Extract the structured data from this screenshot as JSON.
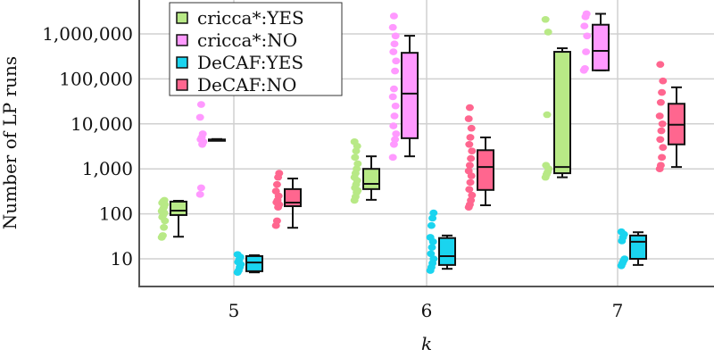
{
  "chart_data": {
    "type": "box",
    "title": "",
    "xlabel": "k",
    "ylabel": "Number of LP runs",
    "yscale": "log",
    "ylim": [
      2.4,
      5600000
    ],
    "yticks": [
      10,
      100,
      1000,
      10000,
      100000,
      1000000
    ],
    "ytick_labels": [
      "10",
      "100",
      "1,000",
      "10,000",
      "100,000",
      "1,000,000"
    ],
    "categories": [
      "5",
      "6",
      "7"
    ],
    "grid": true,
    "legend_position": "top-left",
    "series": [
      {
        "name": "cricca*:YES",
        "color": "#b8e986",
        "boxes": [
          {
            "min": 31,
            "q1": 94,
            "median": 118,
            "q3": 187,
            "max": 195,
            "points": [
              30,
              33,
              50,
              70,
              85,
              95,
              105,
              115,
              125,
              140,
              160,
              175,
              190,
              200
            ]
          },
          {
            "min": 205,
            "q1": 355,
            "median": 465,
            "q3": 1000,
            "max": 1900,
            "points": [
              200,
              240,
              300,
              330,
              380,
              450,
              550,
              650,
              800,
              1000,
              1300,
              1800,
              2500,
              3200,
              4000
            ]
          },
          {
            "min": 650,
            "q1": 800,
            "median": 1100,
            "q3": 400000,
            "max": 480000,
            "points": [
              650,
              750,
              850,
              1000,
              1200,
              16000,
              1100000,
              2100000
            ]
          }
        ]
      },
      {
        "name": "cricca*:NO",
        "color": "#ff99ff",
        "boxes": [
          {
            "min": 4300,
            "q1": 4350,
            "median": 4400,
            "q3": 4500,
            "max": 4600,
            "points": [
              270,
              380,
              3500,
              4000,
              4500,
              5000,
              6000,
              14000,
              27000
            ]
          },
          {
            "min": 1900,
            "q1": 4800,
            "median": 47000,
            "q3": 380000,
            "max": 910000,
            "points": [
              1800,
              3500,
              4500,
              6000,
              9000,
              15000,
              25000,
              40000,
              60000,
              150000,
              250000,
              400000,
              600000,
              900000,
              1400000,
              2500000
            ]
          },
          {
            "min": 155000,
            "q1": 155000,
            "median": 420000,
            "q3": 1600000,
            "max": 2800000,
            "points": [
              155000,
              170000,
              400000,
              900000,
              1500000,
              2400000,
              2800000
            ]
          }
        ]
      },
      {
        "name": "DeCAF:YES",
        "color": "#1ad4ef",
        "boxes": [
          {
            "min": 5,
            "q1": 5.3,
            "median": 8.3,
            "q3": 11.5,
            "max": 12,
            "points": [
              5,
              5.5,
              6.5,
              7.5,
              8.5,
              9.5,
              11,
              12.5
            ]
          },
          {
            "min": 6,
            "q1": 7.3,
            "median": 11.5,
            "q3": 29,
            "max": 33,
            "points": [
              5.5,
              6.5,
              8,
              10,
              13,
              18,
              24,
              30,
              55,
              80,
              105
            ]
          },
          {
            "min": 7.3,
            "q1": 10,
            "median": 24,
            "q3": 33,
            "max": 39,
            "points": [
              7,
              8,
              9,
              10,
              25,
              30,
              35,
              40
            ]
          }
        ]
      },
      {
        "name": "DeCAF:NO",
        "color": "#ff668f",
        "boxes": [
          {
            "min": 49,
            "q1": 148,
            "median": 178,
            "q3": 355,
            "max": 610,
            "points": [
              55,
              70,
              140,
              160,
              180,
              200,
              250,
              320,
              450,
              650,
              800
            ]
          },
          {
            "min": 155,
            "q1": 340,
            "median": 1100,
            "q3": 2600,
            "max": 5000,
            "points": [
              140,
              160,
              200,
              260,
              350,
              500,
              700,
              900,
              1200,
              1700,
              2500,
              3500,
              5000,
              8000,
              13000,
              23000
            ]
          },
          {
            "min": 1100,
            "q1": 3500,
            "median": 9600,
            "q3": 28000,
            "max": 65000,
            "points": [
              1000,
              1200,
              1800,
              3000,
              4500,
              7000,
              10000,
              15000,
              30000,
              50000,
              90000,
              210000
            ]
          }
        ]
      }
    ]
  }
}
